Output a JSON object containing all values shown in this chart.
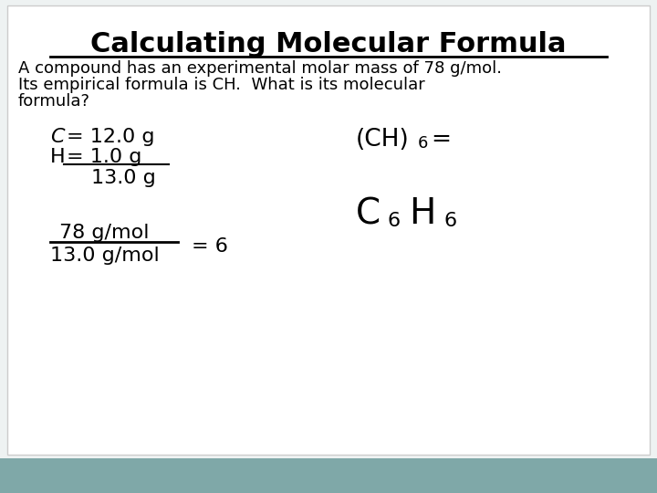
{
  "title": "Calculating Molecular Formula",
  "subtitle_line1": "A compound has an experimental molar mass of 78 g/mol.",
  "subtitle_line2": "Its empirical formula is CH.  What is its molecular",
  "subtitle_line3": "formula?",
  "bg_color": "#eef2f2",
  "footer_color": "#7fa8a8",
  "title_fontsize": 22,
  "subtitle_fontsize": 13,
  "body_fontsize": 15
}
